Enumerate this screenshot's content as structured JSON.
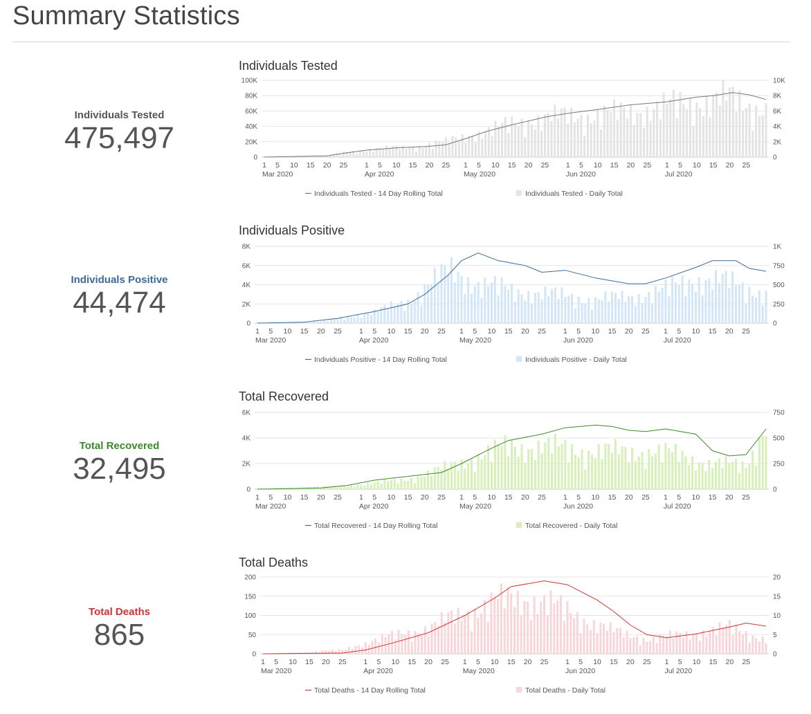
{
  "page": {
    "title": "Summary Statistics"
  },
  "stats": [
    {
      "label": "Individuals Tested",
      "value": "475,497",
      "color": "#555555"
    },
    {
      "label": "Individuals Positive",
      "value": "44,474",
      "color": "#3a6a9a"
    },
    {
      "label": "Total Recovered",
      "value": "32,495",
      "color": "#3a8a2a"
    },
    {
      "label": "Total Deaths",
      "value": "865",
      "color": "#cc3333"
    }
  ],
  "chart_data": [
    {
      "type": "bar",
      "title": "Individuals Tested",
      "x_range": [
        "2020-03-01",
        "2020-07-31"
      ],
      "x_tick_days": [
        "1",
        "5",
        "10",
        "15",
        "20",
        "25"
      ],
      "x_month_labels": [
        "Mar 2020",
        "Apr 2020",
        "May 2020",
        "Jun 2020",
        "Jul 2020"
      ],
      "left_axis": {
        "min": 0,
        "max": 100000,
        "ticks": [
          0,
          20000,
          40000,
          60000,
          80000,
          100000
        ],
        "tick_labels": [
          "0",
          "20K",
          "40K",
          "60K",
          "80K",
          "100K"
        ]
      },
      "right_axis": {
        "min": 0,
        "max": 10000,
        "ticks": [
          0,
          2000,
          4000,
          6000,
          8000,
          10000
        ],
        "tick_labels": [
          "0",
          "2K",
          "4K",
          "6K",
          "8K",
          "10K"
        ]
      },
      "grid": true,
      "legend_position": "bottom",
      "line_series": {
        "name": "Individuals Tested - 14 Day Rolling Total",
        "color": "#777777",
        "axis": "left",
        "points": [
          [
            "2020-03-01",
            0
          ],
          [
            "2020-03-20",
            1500
          ],
          [
            "2020-03-25",
            5000
          ],
          [
            "2020-04-01",
            9000
          ],
          [
            "2020-04-10",
            12000
          ],
          [
            "2020-04-20",
            14000
          ],
          [
            "2020-04-25",
            16000
          ],
          [
            "2020-05-01",
            24000
          ],
          [
            "2020-05-07",
            33000
          ],
          [
            "2020-05-15",
            42000
          ],
          [
            "2020-05-25",
            52000
          ],
          [
            "2020-06-01",
            57000
          ],
          [
            "2020-06-10",
            62000
          ],
          [
            "2020-06-20",
            68000
          ],
          [
            "2020-07-01",
            72000
          ],
          [
            "2020-07-10",
            78000
          ],
          [
            "2020-07-15",
            80000
          ],
          [
            "2020-07-21",
            84000
          ],
          [
            "2020-07-26",
            81000
          ],
          [
            "2020-07-31",
            75000
          ]
        ]
      },
      "bar_series": {
        "name": "Individuals Tested - Daily Total",
        "color": "#e3e3e3",
        "axis": "right",
        "envelope": [
          [
            "2020-03-01",
            0
          ],
          [
            "2020-03-20",
            200
          ],
          [
            "2020-03-25",
            600
          ],
          [
            "2020-04-01",
            1000
          ],
          [
            "2020-04-15",
            1400
          ],
          [
            "2020-04-25",
            2000
          ],
          [
            "2020-05-01",
            2800
          ],
          [
            "2020-05-10",
            3800
          ],
          [
            "2020-05-20",
            5000
          ],
          [
            "2020-06-01",
            5500
          ],
          [
            "2020-06-15",
            5800
          ],
          [
            "2020-07-01",
            6800
          ],
          [
            "2020-07-10",
            7500
          ],
          [
            "2020-07-20",
            7800
          ],
          [
            "2020-07-31",
            6500
          ]
        ]
      }
    },
    {
      "type": "bar",
      "title": "Individuals Positive",
      "x_range": [
        "2020-03-01",
        "2020-07-31"
      ],
      "x_tick_days": [
        "1",
        "5",
        "10",
        "15",
        "20",
        "25"
      ],
      "x_month_labels": [
        "Mar 2020",
        "Apr 2020",
        "May 2020",
        "Jun 2020",
        "Jul 2020"
      ],
      "left_axis": {
        "min": 0,
        "max": 8000,
        "ticks": [
          0,
          2000,
          4000,
          6000,
          8000
        ],
        "tick_labels": [
          "0",
          "2K",
          "4K",
          "6K",
          "8K"
        ]
      },
      "right_axis": {
        "min": 0,
        "max": 1000,
        "ticks": [
          0,
          250,
          500,
          750,
          1000
        ],
        "tick_labels": [
          "0",
          "250",
          "500",
          "750",
          "1K"
        ]
      },
      "grid": true,
      "legend_position": "bottom",
      "line_series": {
        "name": "Individuals Positive - 14 Day Rolling Total",
        "color": "#3a6a9a",
        "axis": "left",
        "points": [
          [
            "2020-03-01",
            0
          ],
          [
            "2020-03-15",
            100
          ],
          [
            "2020-03-25",
            500
          ],
          [
            "2020-04-05",
            1200
          ],
          [
            "2020-04-15",
            2000
          ],
          [
            "2020-04-20",
            3000
          ],
          [
            "2020-04-27",
            5000
          ],
          [
            "2020-05-01",
            6500
          ],
          [
            "2020-05-06",
            7300
          ],
          [
            "2020-05-12",
            6500
          ],
          [
            "2020-05-20",
            6000
          ],
          [
            "2020-05-25",
            5300
          ],
          [
            "2020-06-01",
            5500
          ],
          [
            "2020-06-10",
            4700
          ],
          [
            "2020-06-20",
            4100
          ],
          [
            "2020-06-25",
            4100
          ],
          [
            "2020-07-01",
            4700
          ],
          [
            "2020-07-10",
            5800
          ],
          [
            "2020-07-15",
            6500
          ],
          [
            "2020-07-22",
            6500
          ],
          [
            "2020-07-26",
            5700
          ],
          [
            "2020-07-31",
            5400
          ]
        ]
      },
      "bar_series": {
        "name": "Individuals Positive - Daily Total",
        "color": "#d2e6f8",
        "axis": "right",
        "envelope": [
          [
            "2020-03-01",
            0
          ],
          [
            "2020-03-20",
            20
          ],
          [
            "2020-03-25",
            60
          ],
          [
            "2020-04-05",
            150
          ],
          [
            "2020-04-15",
            300
          ],
          [
            "2020-04-22",
            550
          ],
          [
            "2020-04-28",
            700
          ],
          [
            "2020-05-05",
            550
          ],
          [
            "2020-05-15",
            450
          ],
          [
            "2020-05-25",
            400
          ],
          [
            "2020-06-10",
            320
          ],
          [
            "2020-06-20",
            350
          ],
          [
            "2020-07-01",
            450
          ],
          [
            "2020-07-10",
            600
          ],
          [
            "2020-07-20",
            550
          ],
          [
            "2020-07-31",
            400
          ]
        ]
      }
    },
    {
      "type": "bar",
      "title": "Total Recovered",
      "x_range": [
        "2020-03-01",
        "2020-07-31"
      ],
      "x_tick_days": [
        "1",
        "5",
        "10",
        "15",
        "20",
        "25"
      ],
      "x_month_labels": [
        "Mar 2020",
        "Apr 2020",
        "May 2020",
        "Jun 2020",
        "Jul 2020"
      ],
      "left_axis": {
        "min": 0,
        "max": 6000,
        "ticks": [
          0,
          2000,
          4000,
          6000
        ],
        "tick_labels": [
          "0",
          "2K",
          "4K",
          "6K"
        ]
      },
      "right_axis": {
        "min": 0,
        "max": 750,
        "ticks": [
          0,
          250,
          500,
          750
        ],
        "tick_labels": [
          "0",
          "250",
          "500",
          "750"
        ]
      },
      "grid": true,
      "legend_position": "bottom",
      "line_series": {
        "name": "Total Recovered - 14 Day Rolling Total",
        "color": "#3a8a2a",
        "axis": "left",
        "points": [
          [
            "2020-03-01",
            0
          ],
          [
            "2020-03-20",
            100
          ],
          [
            "2020-03-28",
            300
          ],
          [
            "2020-04-05",
            700
          ],
          [
            "2020-04-15",
            1000
          ],
          [
            "2020-04-25",
            1300
          ],
          [
            "2020-05-01",
            2000
          ],
          [
            "2020-05-10",
            3200
          ],
          [
            "2020-05-15",
            3800
          ],
          [
            "2020-05-25",
            4300
          ],
          [
            "2020-06-01",
            4800
          ],
          [
            "2020-06-10",
            5000
          ],
          [
            "2020-06-15",
            4900
          ],
          [
            "2020-06-20",
            4600
          ],
          [
            "2020-06-25",
            4500
          ],
          [
            "2020-07-01",
            4700
          ],
          [
            "2020-07-10",
            4300
          ],
          [
            "2020-07-15",
            3000
          ],
          [
            "2020-07-20",
            2600
          ],
          [
            "2020-07-25",
            2700
          ],
          [
            "2020-07-31",
            4700
          ]
        ]
      },
      "bar_series": {
        "name": "Total Recovered - Daily Total",
        "color": "#d6f0b8",
        "axis": "right",
        "envelope": [
          [
            "2020-03-01",
            0
          ],
          [
            "2020-03-25",
            30
          ],
          [
            "2020-04-05",
            60
          ],
          [
            "2020-04-15",
            100
          ],
          [
            "2020-04-25",
            200
          ],
          [
            "2020-05-05",
            320
          ],
          [
            "2020-05-15",
            430
          ],
          [
            "2020-05-25",
            430
          ],
          [
            "2020-06-10",
            380
          ],
          [
            "2020-06-25",
            380
          ],
          [
            "2020-07-05",
            350
          ],
          [
            "2020-07-15",
            250
          ],
          [
            "2020-07-25",
            250
          ],
          [
            "2020-07-31",
            650
          ]
        ]
      }
    },
    {
      "type": "bar",
      "title": "Total Deaths",
      "x_range": [
        "2020-03-01",
        "2020-07-31"
      ],
      "x_tick_days": [
        "1",
        "5",
        "10",
        "15",
        "20",
        "25"
      ],
      "x_month_labels": [
        "Mar 2020",
        "Apr 2020",
        "May 2020",
        "Jun 2020",
        "Jul 2020"
      ],
      "left_axis": {
        "min": 0,
        "max": 200,
        "ticks": [
          0,
          50,
          100,
          150,
          200
        ],
        "tick_labels": [
          "0",
          "50",
          "100",
          "150",
          "200"
        ]
      },
      "right_axis": {
        "min": 0,
        "max": 20,
        "ticks": [
          0,
          5,
          10,
          15,
          20
        ],
        "tick_labels": [
          "0",
          "5",
          "10",
          "15",
          "20"
        ]
      },
      "grid": true,
      "legend_position": "bottom",
      "line_series": {
        "name": "Total Deaths - 14 Day Rolling Total",
        "color": "#cc3333",
        "axis": "left",
        "points": [
          [
            "2020-03-01",
            0
          ],
          [
            "2020-03-25",
            2
          ],
          [
            "2020-04-01",
            10
          ],
          [
            "2020-04-10",
            30
          ],
          [
            "2020-04-20",
            55
          ],
          [
            "2020-05-01",
            100
          ],
          [
            "2020-05-10",
            145
          ],
          [
            "2020-05-15",
            175
          ],
          [
            "2020-05-25",
            190
          ],
          [
            "2020-06-01",
            180
          ],
          [
            "2020-06-10",
            140
          ],
          [
            "2020-06-15",
            110
          ],
          [
            "2020-06-20",
            75
          ],
          [
            "2020-06-25",
            50
          ],
          [
            "2020-07-01",
            42
          ],
          [
            "2020-07-10",
            52
          ],
          [
            "2020-07-20",
            70
          ],
          [
            "2020-07-25",
            80
          ],
          [
            "2020-07-31",
            72
          ]
        ]
      },
      "bar_series": {
        "name": "Total Deaths - Daily Total",
        "color": "#f8d6d8",
        "axis": "right",
        "envelope": [
          [
            "2020-03-01",
            0
          ],
          [
            "2020-03-25",
            1
          ],
          [
            "2020-04-01",
            3
          ],
          [
            "2020-04-10",
            5
          ],
          [
            "2020-04-20",
            7
          ],
          [
            "2020-05-01",
            11
          ],
          [
            "2020-05-10",
            14
          ],
          [
            "2020-05-20",
            15
          ],
          [
            "2020-05-25",
            14
          ],
          [
            "2020-06-05",
            10
          ],
          [
            "2020-06-15",
            6
          ],
          [
            "2020-06-25",
            4
          ],
          [
            "2020-07-05",
            5
          ],
          [
            "2020-07-20",
            7
          ],
          [
            "2020-07-31",
            4
          ]
        ]
      }
    }
  ]
}
